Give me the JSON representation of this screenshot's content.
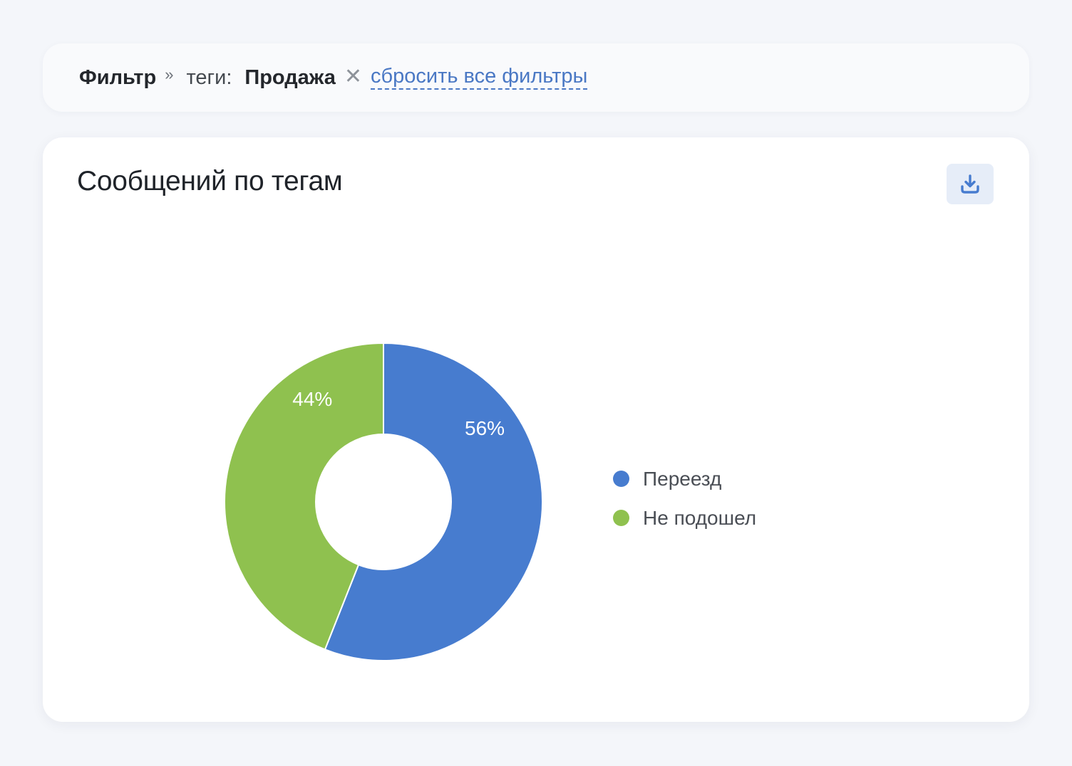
{
  "filter": {
    "title": "Фильтр",
    "separator": "»",
    "key_label": "теги:",
    "tag": "Продажа",
    "remove_glyph": "✕",
    "reset_label": "сбросить все фильтры"
  },
  "card": {
    "title": "Сообщений по тегам",
    "download_icon": "download-icon"
  },
  "colors": {
    "blue": "#477ccf",
    "green": "#8fc14f",
    "link": "#4a78c4"
  },
  "chart_data": {
    "type": "pie",
    "hole": true,
    "categories": [
      "Переезд",
      "Не подошел"
    ],
    "values": [
      56,
      44
    ],
    "labels": [
      "56%",
      "44%"
    ],
    "colors": [
      "#477ccf",
      "#8fc14f"
    ],
    "legend_position": "right"
  }
}
